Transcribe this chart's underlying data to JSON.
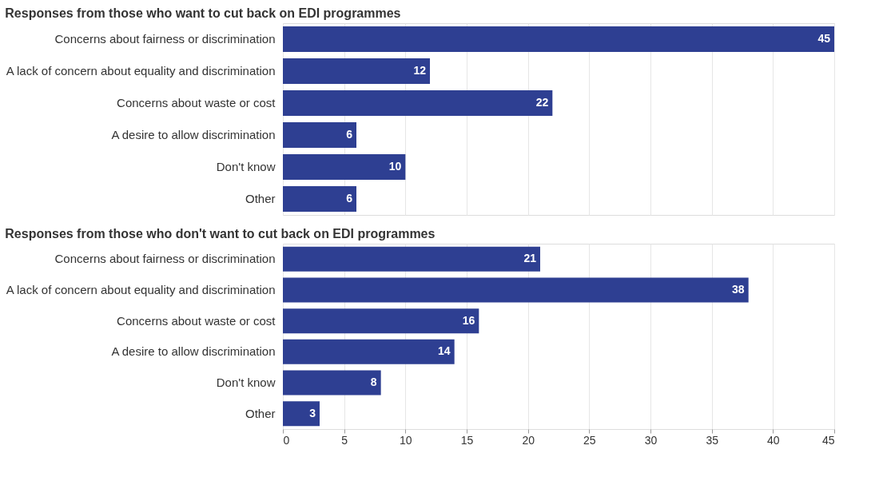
{
  "chart_data": [
    {
      "type": "bar",
      "orientation": "horizontal",
      "title": "Responses from those who want to cut back on EDI programmes",
      "categories": [
        "Concerns about fairness or discrimination",
        "A lack of concern about equality and discrimination",
        "Concerns about waste or cost",
        "A desire to allow discrimination",
        "Don't know",
        "Other"
      ],
      "values": [
        45,
        12,
        22,
        6,
        10,
        6
      ],
      "color": "#2e3f92",
      "xlim": [
        0,
        45
      ],
      "xticks": [
        0,
        5,
        10,
        15,
        20,
        25,
        30,
        35,
        40,
        45
      ],
      "grid": "x",
      "data_labels": true,
      "tick_labels": "y"
    },
    {
      "type": "bar",
      "orientation": "horizontal",
      "title": "Responses from those who don't want to cut back on EDI programmes",
      "categories": [
        "Concerns about fairness or discrimination",
        "A lack of concern about equality and discrimination",
        "Concerns about waste or cost",
        "A desire to allow discrimination",
        "Don't know",
        "Other"
      ],
      "values": [
        21,
        38,
        16,
        14,
        8,
        3
      ],
      "color": "#2e3f92",
      "xlim": [
        0,
        45
      ],
      "xticks": [
        0,
        5,
        10,
        15,
        20,
        25,
        30,
        35,
        40,
        45
      ],
      "grid": "x",
      "data_labels": true
    }
  ]
}
